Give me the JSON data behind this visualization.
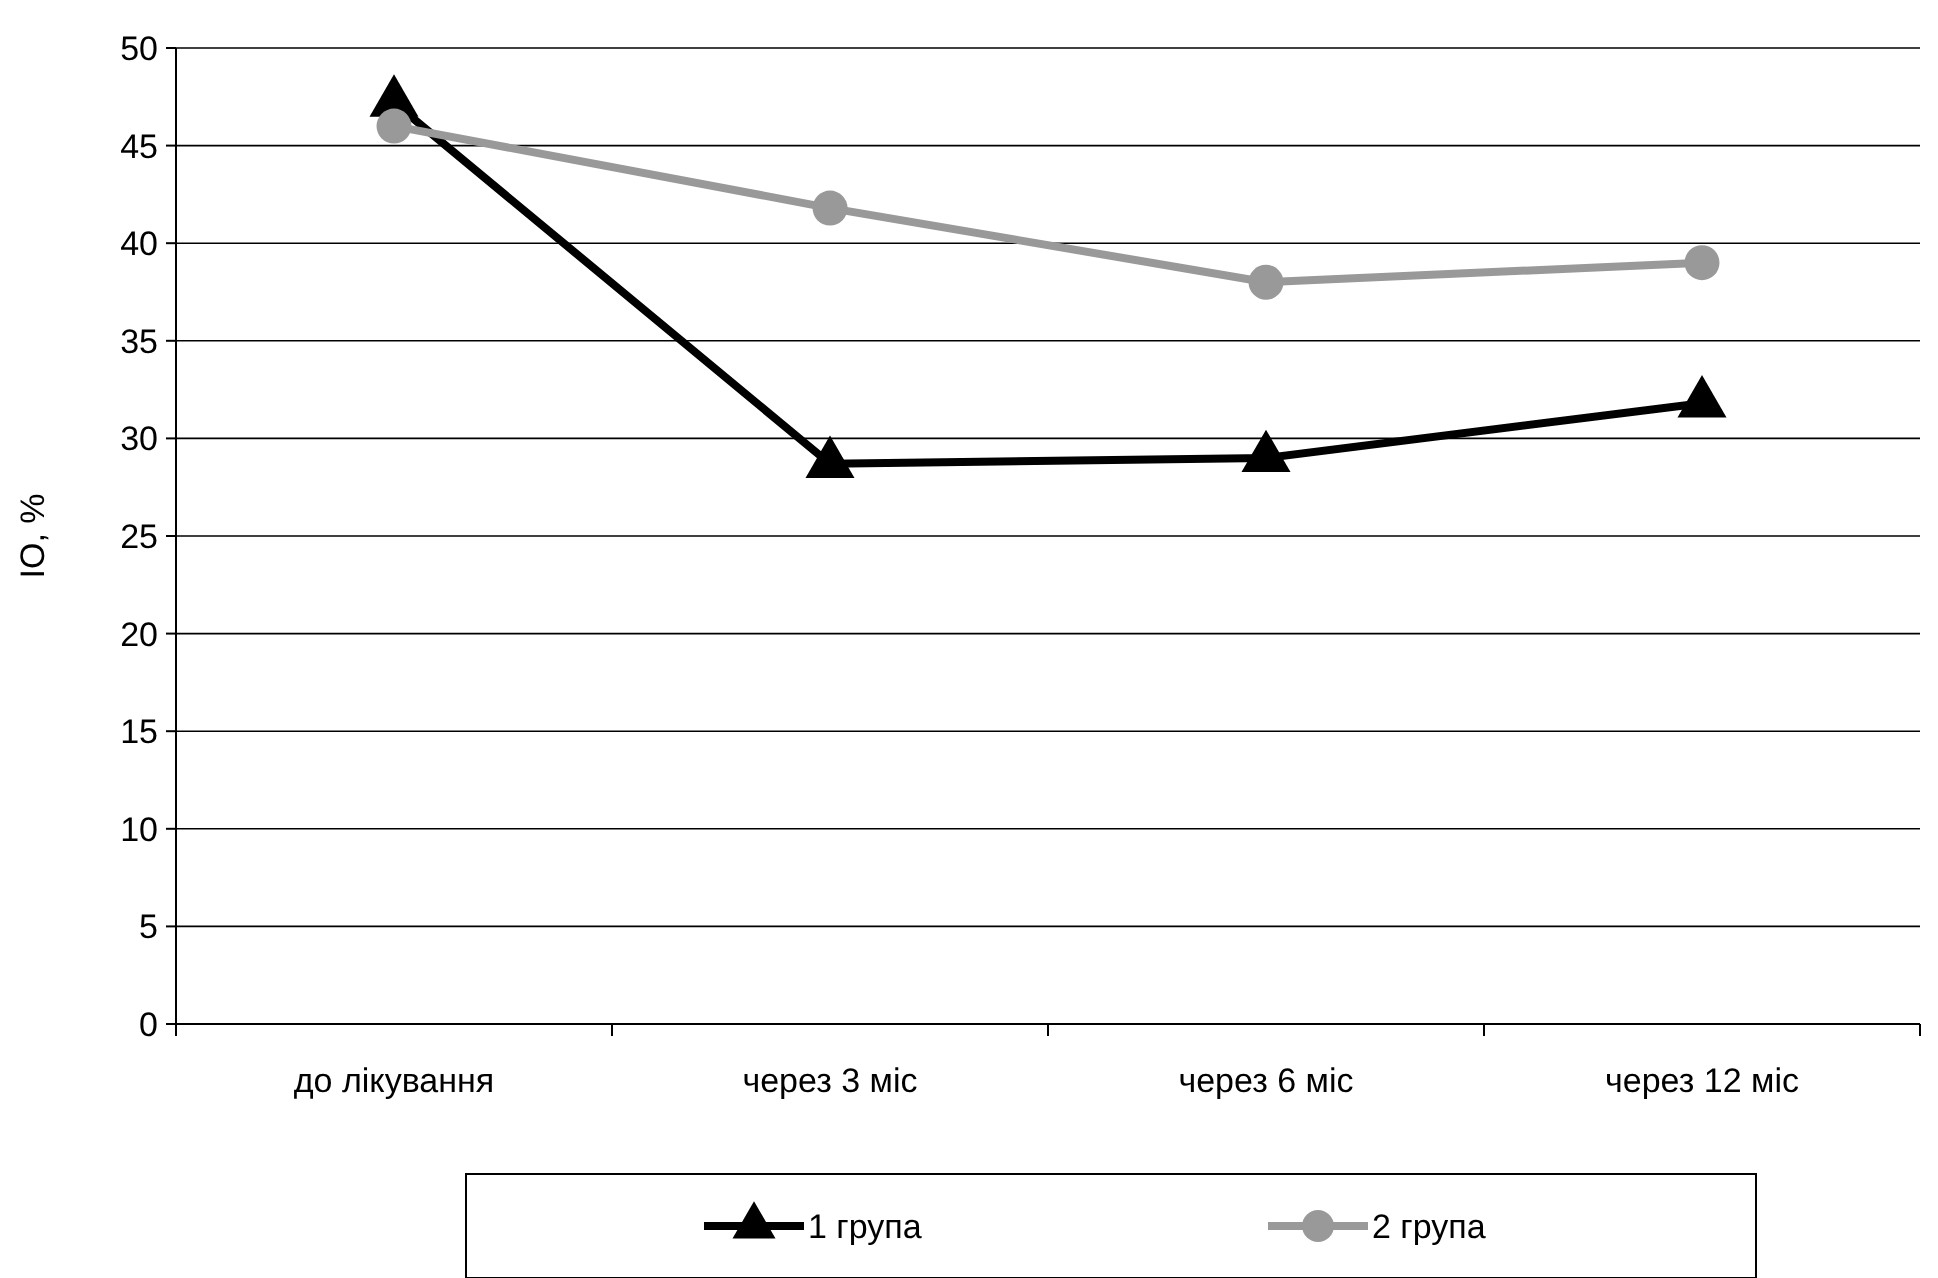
{
  "chart_data": {
    "type": "line",
    "ylabel": "IO, %",
    "categories": [
      "до лікування",
      "через 3 міс",
      "через 6 міс",
      "через 12 міс"
    ],
    "series": [
      {
        "name": "1 група",
        "color": "#000000",
        "marker": "triangle",
        "values": [
          47.2,
          28.7,
          29.0,
          31.8
        ]
      },
      {
        "name": "2 група",
        "color": "#999999",
        "marker": "circle",
        "values": [
          46.0,
          41.8,
          38.0,
          39.0
        ]
      }
    ],
    "ylim": [
      0,
      50
    ],
    "yticks": [
      0,
      5,
      10,
      15,
      20,
      25,
      30,
      35,
      40,
      45,
      50
    ],
    "grid": "y",
    "legend": "bottom",
    "line_style": "solid"
  }
}
